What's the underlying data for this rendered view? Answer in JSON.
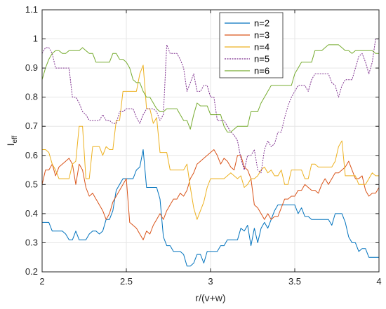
{
  "chart_data": {
    "type": "line",
    "xlabel": "r/(v+w)",
    "ylabel_main": "I",
    "ylabel_sub": "eff",
    "xlim": [
      2,
      4
    ],
    "ylim": [
      0.2,
      1.1
    ],
    "xticks": [
      2,
      2.5,
      3,
      3.5,
      4
    ],
    "xtick_labels": [
      "2",
      "2.5",
      "3",
      "3.5",
      "4"
    ],
    "yticks": [
      0.2,
      0.3,
      0.4,
      0.5,
      0.6,
      0.7,
      0.8,
      0.9,
      1.0,
      1.1
    ],
    "ytick_labels": [
      "0.2",
      "0.3",
      "0.4",
      "0.5",
      "0.6",
      "0.7",
      "0.8",
      "0.9",
      "1",
      "1.1"
    ],
    "grid": true,
    "legend_position": "top-right",
    "series": [
      {
        "name": "n=2",
        "color": "#0072BD",
        "dash": "solid",
        "x": [
          2.0,
          2.02,
          2.04,
          2.06,
          2.08,
          2.1,
          2.12,
          2.14,
          2.16,
          2.18,
          2.2,
          2.22,
          2.24,
          2.26,
          2.28,
          2.3,
          2.32,
          2.34,
          2.36,
          2.38,
          2.4,
          2.42,
          2.44,
          2.46,
          2.48,
          2.5,
          2.52,
          2.54,
          2.56,
          2.58,
          2.6,
          2.62,
          2.64,
          2.66,
          2.68,
          2.7,
          2.72,
          2.74,
          2.76,
          2.78,
          2.8,
          2.82,
          2.84,
          2.86,
          2.88,
          2.9,
          2.92,
          2.94,
          2.96,
          2.98,
          3.0,
          3.02,
          3.04,
          3.06,
          3.08,
          3.1,
          3.12,
          3.14,
          3.16,
          3.18,
          3.2,
          3.22,
          3.24,
          3.26,
          3.28,
          3.3,
          3.32,
          3.34,
          3.36,
          3.38,
          3.4,
          3.42,
          3.44,
          3.46,
          3.48,
          3.5,
          3.52,
          3.54,
          3.56,
          3.58,
          3.6,
          3.62,
          3.64,
          3.66,
          3.68,
          3.7,
          3.72,
          3.74,
          3.76,
          3.78,
          3.8,
          3.82,
          3.84,
          3.86,
          3.88,
          3.9,
          3.92,
          3.94,
          3.96,
          3.98,
          4.0
        ],
        "y": [
          0.37,
          0.37,
          0.37,
          0.34,
          0.34,
          0.34,
          0.34,
          0.33,
          0.31,
          0.31,
          0.34,
          0.31,
          0.31,
          0.31,
          0.33,
          0.34,
          0.34,
          0.33,
          0.34,
          0.38,
          0.38,
          0.41,
          0.48,
          0.5,
          0.52,
          0.52,
          0.52,
          0.52,
          0.55,
          0.56,
          0.62,
          0.49,
          0.49,
          0.49,
          0.49,
          0.45,
          0.32,
          0.29,
          0.29,
          0.27,
          0.27,
          0.27,
          0.26,
          0.22,
          0.22,
          0.23,
          0.26,
          0.26,
          0.23,
          0.27,
          0.27,
          0.27,
          0.27,
          0.29,
          0.29,
          0.31,
          0.31,
          0.31,
          0.31,
          0.35,
          0.34,
          0.36,
          0.29,
          0.35,
          0.3,
          0.35,
          0.37,
          0.35,
          0.38,
          0.41,
          0.43,
          0.43,
          0.43,
          0.43,
          0.43,
          0.43,
          0.4,
          0.42,
          0.39,
          0.39,
          0.38,
          0.38,
          0.38,
          0.38,
          0.38,
          0.38,
          0.36,
          0.4,
          0.4,
          0.4,
          0.37,
          0.32,
          0.3,
          0.3,
          0.27,
          0.28,
          0.28,
          0.25,
          0.25,
          0.25,
          0.25
        ]
      },
      {
        "name": "n=3",
        "color": "#D95319",
        "dash": "solid",
        "x": [
          2.0,
          2.02,
          2.04,
          2.06,
          2.08,
          2.1,
          2.12,
          2.14,
          2.16,
          2.18,
          2.2,
          2.22,
          2.24,
          2.26,
          2.28,
          2.3,
          2.32,
          2.34,
          2.36,
          2.38,
          2.4,
          2.42,
          2.44,
          2.46,
          2.48,
          2.5,
          2.52,
          2.54,
          2.56,
          2.58,
          2.6,
          2.62,
          2.64,
          2.66,
          2.68,
          2.7,
          2.72,
          2.74,
          2.76,
          2.78,
          2.8,
          2.82,
          2.84,
          2.86,
          2.88,
          2.9,
          2.92,
          2.94,
          2.96,
          2.98,
          3.0,
          3.02,
          3.04,
          3.06,
          3.08,
          3.1,
          3.12,
          3.14,
          3.16,
          3.18,
          3.2,
          3.22,
          3.24,
          3.26,
          3.28,
          3.3,
          3.32,
          3.34,
          3.36,
          3.38,
          3.4,
          3.42,
          3.44,
          3.46,
          3.48,
          3.5,
          3.52,
          3.54,
          3.56,
          3.58,
          3.6,
          3.62,
          3.64,
          3.66,
          3.68,
          3.7,
          3.72,
          3.74,
          3.76,
          3.78,
          3.8,
          3.82,
          3.84,
          3.86,
          3.88,
          3.9,
          3.92,
          3.94,
          3.96,
          3.98,
          4.0
        ],
        "y": [
          0.5,
          0.55,
          0.55,
          0.57,
          0.53,
          0.56,
          0.57,
          0.58,
          0.59,
          0.57,
          0.5,
          0.57,
          0.55,
          0.49,
          0.46,
          0.47,
          0.45,
          0.43,
          0.41,
          0.38,
          0.4,
          0.44,
          0.46,
          0.48,
          0.5,
          0.52,
          0.37,
          0.36,
          0.35,
          0.33,
          0.31,
          0.34,
          0.33,
          0.36,
          0.38,
          0.4,
          0.38,
          0.41,
          0.43,
          0.45,
          0.45,
          0.47,
          0.46,
          0.48,
          0.52,
          0.54,
          0.57,
          0.58,
          0.59,
          0.6,
          0.61,
          0.62,
          0.6,
          0.57,
          0.59,
          0.58,
          0.56,
          0.55,
          0.6,
          0.6,
          0.56,
          0.55,
          0.52,
          0.43,
          0.42,
          0.4,
          0.38,
          0.4,
          0.38,
          0.39,
          0.39,
          0.42,
          0.45,
          0.45,
          0.46,
          0.46,
          0.48,
          0.48,
          0.5,
          0.49,
          0.48,
          0.48,
          0.47,
          0.5,
          0.52,
          0.5,
          0.52,
          0.54,
          0.54,
          0.55,
          0.56,
          0.58,
          0.55,
          0.52,
          0.52,
          0.53,
          0.48,
          0.46,
          0.47,
          0.47,
          0.49
        ]
      },
      {
        "name": "n=4",
        "color": "#EDB120",
        "dash": "solid",
        "x": [
          2.0,
          2.02,
          2.04,
          2.06,
          2.08,
          2.1,
          2.12,
          2.14,
          2.16,
          2.18,
          2.2,
          2.22,
          2.24,
          2.26,
          2.28,
          2.3,
          2.32,
          2.34,
          2.36,
          2.38,
          2.4,
          2.42,
          2.44,
          2.46,
          2.48,
          2.5,
          2.52,
          2.54,
          2.56,
          2.58,
          2.6,
          2.62,
          2.64,
          2.66,
          2.68,
          2.7,
          2.72,
          2.74,
          2.76,
          2.78,
          2.8,
          2.82,
          2.84,
          2.86,
          2.88,
          2.9,
          2.92,
          2.94,
          2.96,
          2.98,
          3.0,
          3.02,
          3.04,
          3.06,
          3.08,
          3.1,
          3.12,
          3.14,
          3.16,
          3.18,
          3.2,
          3.22,
          3.24,
          3.26,
          3.28,
          3.3,
          3.32,
          3.34,
          3.36,
          3.38,
          3.4,
          3.42,
          3.44,
          3.46,
          3.48,
          3.5,
          3.52,
          3.54,
          3.56,
          3.58,
          3.6,
          3.62,
          3.64,
          3.66,
          3.68,
          3.7,
          3.72,
          3.74,
          3.76,
          3.78,
          3.8,
          3.82,
          3.84,
          3.86,
          3.88,
          3.9,
          3.92,
          3.94,
          3.96,
          3.98,
          4.0
        ],
        "y": [
          0.62,
          0.62,
          0.61,
          0.57,
          0.55,
          0.52,
          0.52,
          0.52,
          0.52,
          0.57,
          0.58,
          0.7,
          0.7,
          0.52,
          0.52,
          0.63,
          0.63,
          0.63,
          0.6,
          0.63,
          0.62,
          0.62,
          0.72,
          0.72,
          0.82,
          0.82,
          0.82,
          0.82,
          0.82,
          0.88,
          0.91,
          0.76,
          0.76,
          0.71,
          0.73,
          0.61,
          0.61,
          0.61,
          0.55,
          0.55,
          0.55,
          0.55,
          0.55,
          0.57,
          0.49,
          0.42,
          0.38,
          0.41,
          0.44,
          0.49,
          0.52,
          0.52,
          0.52,
          0.52,
          0.52,
          0.53,
          0.54,
          0.53,
          0.52,
          0.53,
          0.49,
          0.5,
          0.52,
          0.52,
          0.53,
          0.55,
          0.56,
          0.54,
          0.55,
          0.53,
          0.53,
          0.55,
          0.5,
          0.5,
          0.55,
          0.55,
          0.55,
          0.55,
          0.52,
          0.52,
          0.57,
          0.57,
          0.56,
          0.56,
          0.56,
          0.56,
          0.56,
          0.58,
          0.63,
          0.65,
          0.53,
          0.53,
          0.53,
          0.53,
          0.5,
          0.5,
          0.5,
          0.52,
          0.54,
          0.53,
          0.53
        ]
      },
      {
        "name": "n=5",
        "color": "#7E2F8E",
        "dash": "dotted",
        "x": [
          2.0,
          2.02,
          2.04,
          2.06,
          2.08,
          2.1,
          2.12,
          2.14,
          2.16,
          2.18,
          2.2,
          2.22,
          2.24,
          2.26,
          2.28,
          2.3,
          2.32,
          2.34,
          2.36,
          2.38,
          2.4,
          2.42,
          2.44,
          2.46,
          2.48,
          2.5,
          2.52,
          2.54,
          2.56,
          2.58,
          2.6,
          2.62,
          2.64,
          2.66,
          2.68,
          2.7,
          2.72,
          2.74,
          2.76,
          2.78,
          2.8,
          2.82,
          2.84,
          2.86,
          2.88,
          2.9,
          2.92,
          2.94,
          2.96,
          2.98,
          3.0,
          3.02,
          3.04,
          3.06,
          3.08,
          3.1,
          3.12,
          3.14,
          3.16,
          3.18,
          3.2,
          3.22,
          3.24,
          3.26,
          3.28,
          3.3,
          3.32,
          3.34,
          3.36,
          3.38,
          3.4,
          3.42,
          3.44,
          3.46,
          3.48,
          3.5,
          3.52,
          3.54,
          3.56,
          3.58,
          3.6,
          3.62,
          3.64,
          3.66,
          3.68,
          3.7,
          3.72,
          3.74,
          3.76,
          3.78,
          3.8,
          3.82,
          3.84,
          3.86,
          3.88,
          3.9,
          3.92,
          3.94,
          3.96,
          3.98,
          4.0
        ],
        "y": [
          0.95,
          0.97,
          0.97,
          0.95,
          0.9,
          0.9,
          0.9,
          0.9,
          0.9,
          0.8,
          0.8,
          0.78,
          0.75,
          0.74,
          0.72,
          0.72,
          0.72,
          0.72,
          0.74,
          0.72,
          0.72,
          0.71,
          0.71,
          0.75,
          0.75,
          0.76,
          0.76,
          0.76,
          0.73,
          0.71,
          0.74,
          0.76,
          0.76,
          0.76,
          0.75,
          0.72,
          0.74,
          0.98,
          0.95,
          0.95,
          0.95,
          0.93,
          0.9,
          0.82,
          0.85,
          0.88,
          0.82,
          0.82,
          0.84,
          0.84,
          0.8,
          0.8,
          0.72,
          0.72,
          0.72,
          0.7,
          0.68,
          0.67,
          0.65,
          0.59,
          0.55,
          0.6,
          0.6,
          0.62,
          0.55,
          0.54,
          0.62,
          0.65,
          0.63,
          0.64,
          0.68,
          0.68,
          0.73,
          0.77,
          0.8,
          0.82,
          0.84,
          0.84,
          0.84,
          0.82,
          0.86,
          0.88,
          0.88,
          0.88,
          0.88,
          0.88,
          0.85,
          0.84,
          0.8,
          0.84,
          0.86,
          0.86,
          0.86,
          0.9,
          0.94,
          0.95,
          0.92,
          0.88,
          0.92,
          1.0,
          1.0
        ]
      },
      {
        "name": "n=6",
        "color": "#77AC30",
        "dash": "solid",
        "x": [
          2.0,
          2.02,
          2.04,
          2.06,
          2.08,
          2.1,
          2.12,
          2.14,
          2.16,
          2.18,
          2.2,
          2.22,
          2.24,
          2.26,
          2.28,
          2.3,
          2.32,
          2.34,
          2.36,
          2.38,
          2.4,
          2.42,
          2.44,
          2.46,
          2.48,
          2.5,
          2.52,
          2.54,
          2.56,
          2.58,
          2.6,
          2.62,
          2.64,
          2.66,
          2.68,
          2.7,
          2.72,
          2.74,
          2.76,
          2.78,
          2.8,
          2.82,
          2.84,
          2.86,
          2.88,
          2.9,
          2.92,
          2.94,
          2.96,
          2.98,
          3.0,
          3.02,
          3.04,
          3.06,
          3.08,
          3.1,
          3.12,
          3.14,
          3.16,
          3.18,
          3.2,
          3.22,
          3.24,
          3.26,
          3.28,
          3.3,
          3.32,
          3.34,
          3.36,
          3.38,
          3.4,
          3.42,
          3.44,
          3.46,
          3.48,
          3.5,
          3.52,
          3.54,
          3.56,
          3.58,
          3.6,
          3.62,
          3.64,
          3.66,
          3.68,
          3.7,
          3.72,
          3.74,
          3.76,
          3.78,
          3.8,
          3.82,
          3.84,
          3.86,
          3.88,
          3.9,
          3.92,
          3.94,
          3.96,
          3.98,
          4.0
        ],
        "y": [
          0.86,
          0.9,
          0.93,
          0.95,
          0.96,
          0.96,
          0.95,
          0.95,
          0.96,
          0.96,
          0.96,
          0.96,
          0.97,
          0.96,
          0.95,
          0.95,
          0.92,
          0.92,
          0.92,
          0.92,
          0.92,
          0.95,
          0.95,
          0.93,
          0.93,
          0.92,
          0.9,
          0.86,
          0.85,
          0.85,
          0.82,
          0.8,
          0.8,
          0.78,
          0.76,
          0.75,
          0.75,
          0.76,
          0.76,
          0.76,
          0.76,
          0.74,
          0.72,
          0.72,
          0.69,
          0.74,
          0.78,
          0.77,
          0.77,
          0.77,
          0.74,
          0.74,
          0.74,
          0.74,
          0.7,
          0.68,
          0.68,
          0.69,
          0.7,
          0.7,
          0.7,
          0.7,
          0.75,
          0.75,
          0.75,
          0.78,
          0.8,
          0.82,
          0.84,
          0.84,
          0.84,
          0.84,
          0.84,
          0.84,
          0.84,
          0.88,
          0.9,
          0.92,
          0.92,
          0.92,
          0.92,
          0.96,
          0.96,
          0.96,
          0.97,
          0.98,
          0.98,
          0.98,
          0.98,
          0.97,
          0.96,
          0.96,
          0.95,
          0.96,
          0.96,
          0.96,
          0.96,
          0.96,
          0.96,
          0.95,
          0.95
        ]
      }
    ]
  }
}
